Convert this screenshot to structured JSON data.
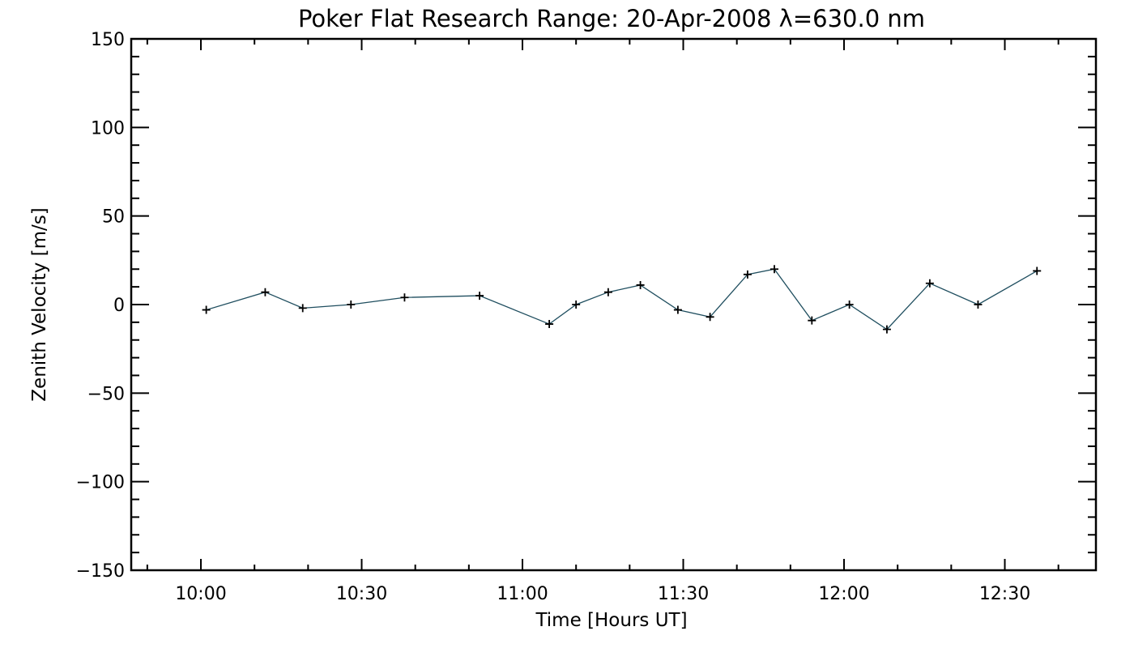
{
  "chart_data": {
    "type": "line",
    "title": "Poker Flat Research Range: 20-Apr-2008 λ=630.0 nm",
    "xlabel": "Time [Hours UT]",
    "ylabel": "Zenith Velocity [m/s]",
    "xlim": [
      "09:47",
      "12:47"
    ],
    "ylim": [
      -150,
      150
    ],
    "x_ticks": [
      "10:00",
      "10:30",
      "11:00",
      "11:30",
      "12:00",
      "12:30"
    ],
    "y_ticks": [
      "150",
      "100",
      "50",
      "0",
      "−50",
      "−100",
      "−150"
    ],
    "grid": false,
    "marker": "plus",
    "line_color": "#1f4e5f",
    "series": [
      {
        "x": [
          "10:01",
          "10:12",
          "10:19",
          "10:28",
          "10:38",
          "10:52",
          "11:05",
          "11:10",
          "11:16",
          "11:22",
          "11:29",
          "11:35",
          "11:42",
          "11:47",
          "11:54",
          "12:01",
          "12:08",
          "12:16",
          "12:25",
          "12:36"
        ],
        "values": [
          -3,
          7,
          -2,
          0,
          4,
          5,
          -11,
          0,
          7,
          11,
          -3,
          -7,
          17,
          20,
          -9,
          0,
          -14,
          12,
          0,
          19
        ]
      }
    ]
  }
}
